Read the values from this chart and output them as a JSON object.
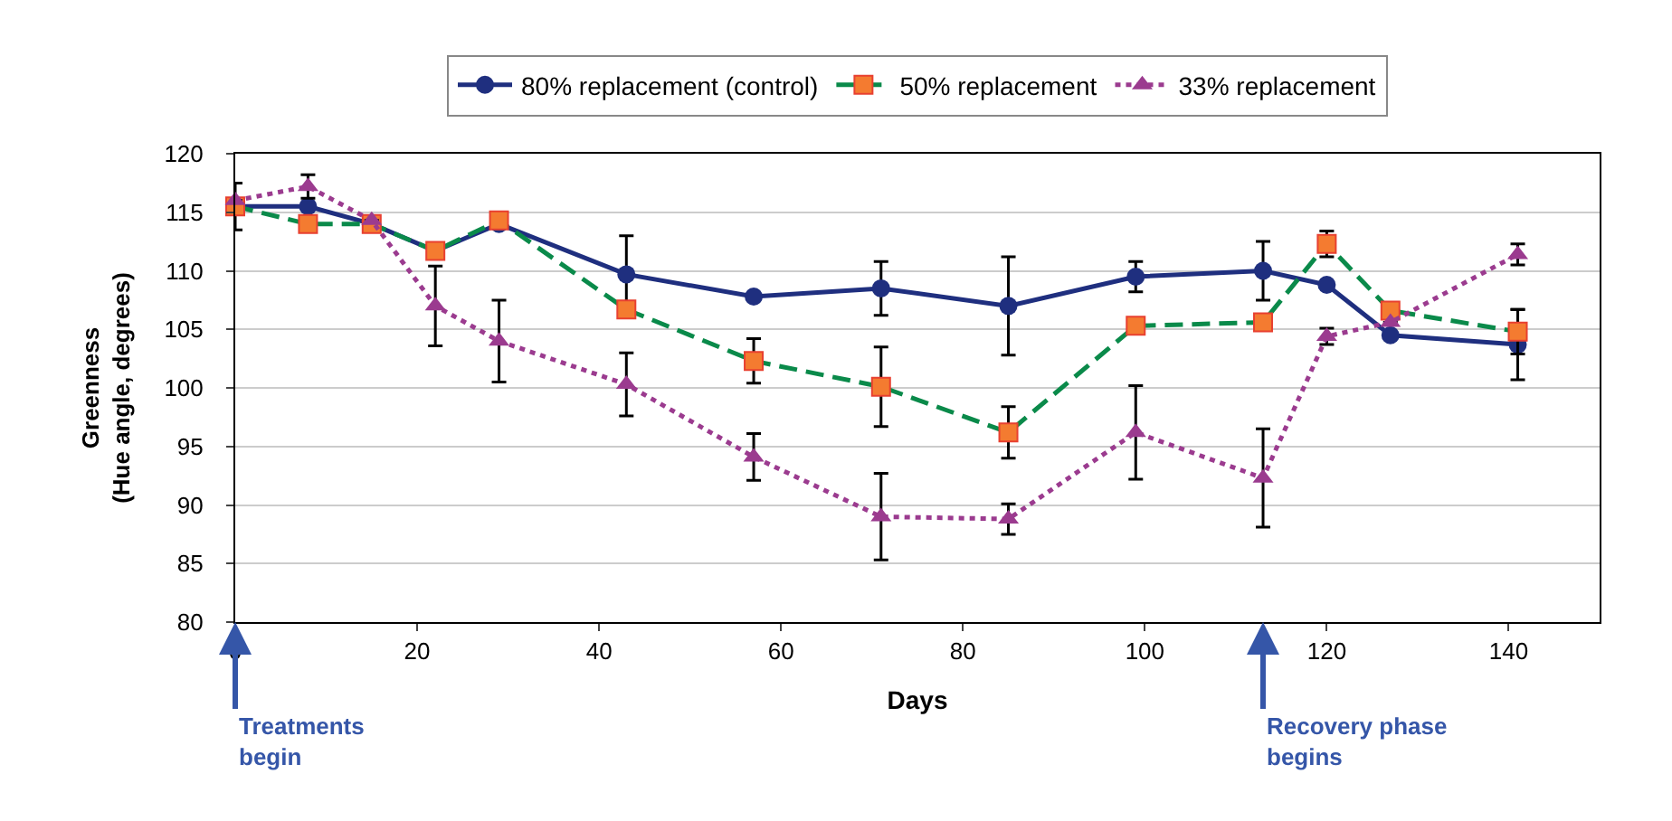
{
  "chart_data": {
    "type": "line",
    "xlabel": "Days",
    "ylabel": "Greenness\n(Hue angle, degrees)",
    "x": [
      0,
      8,
      15,
      22,
      29,
      43,
      57,
      71,
      85,
      99,
      113,
      120,
      127,
      141
    ],
    "series": [
      {
        "name": "80% replacement (control)",
        "color": "#1f2f7f",
        "marker": "circle",
        "line_style": "solid",
        "values": [
          115.5,
          115.5,
          114,
          111.7,
          114,
          109.7,
          107.8,
          108.5,
          107,
          109.5,
          110,
          108.8,
          104.5,
          103.7
        ],
        "errors": [
          2,
          null,
          null,
          null,
          null,
          3.3,
          null,
          2.3,
          4.2,
          1.3,
          2.5,
          null,
          null,
          3
        ]
      },
      {
        "name": "50% replacement",
        "color": "#0a8a4a",
        "marker": "square",
        "line_style": "dashed",
        "values": [
          115.5,
          114,
          114,
          111.7,
          114.3,
          106.7,
          102.3,
          100.1,
          96.2,
          105.3,
          105.6,
          112.3,
          106.6,
          104.8
        ],
        "errors": [
          null,
          null,
          null,
          null,
          null,
          null,
          1.9,
          3.4,
          2.2,
          null,
          null,
          1.1,
          null,
          1.9
        ]
      },
      {
        "name": "33% replacement",
        "color": "#9b3b8f",
        "marker": "triangle",
        "line_style": "dotted",
        "values": [
          116,
          117.2,
          114.3,
          107,
          104,
          100.3,
          94.1,
          89,
          88.8,
          96.2,
          92.3,
          104.4,
          105.6,
          111.4
        ],
        "errors": [
          null,
          1,
          null,
          3.4,
          3.5,
          2.7,
          2,
          3.7,
          1.3,
          4,
          4.2,
          0.7,
          null,
          0.9
        ]
      }
    ],
    "xlim": [
      0,
      150
    ],
    "xticks": [
      0,
      20,
      40,
      60,
      80,
      100,
      120,
      140
    ],
    "ylim": [
      80,
      120
    ],
    "yticks": [
      80,
      85,
      90,
      95,
      100,
      105,
      110,
      115,
      120
    ],
    "grid": "y",
    "legend": "top",
    "annotations": [
      "Treatments\nbegin",
      "Recovery phase\nbegins"
    ]
  }
}
